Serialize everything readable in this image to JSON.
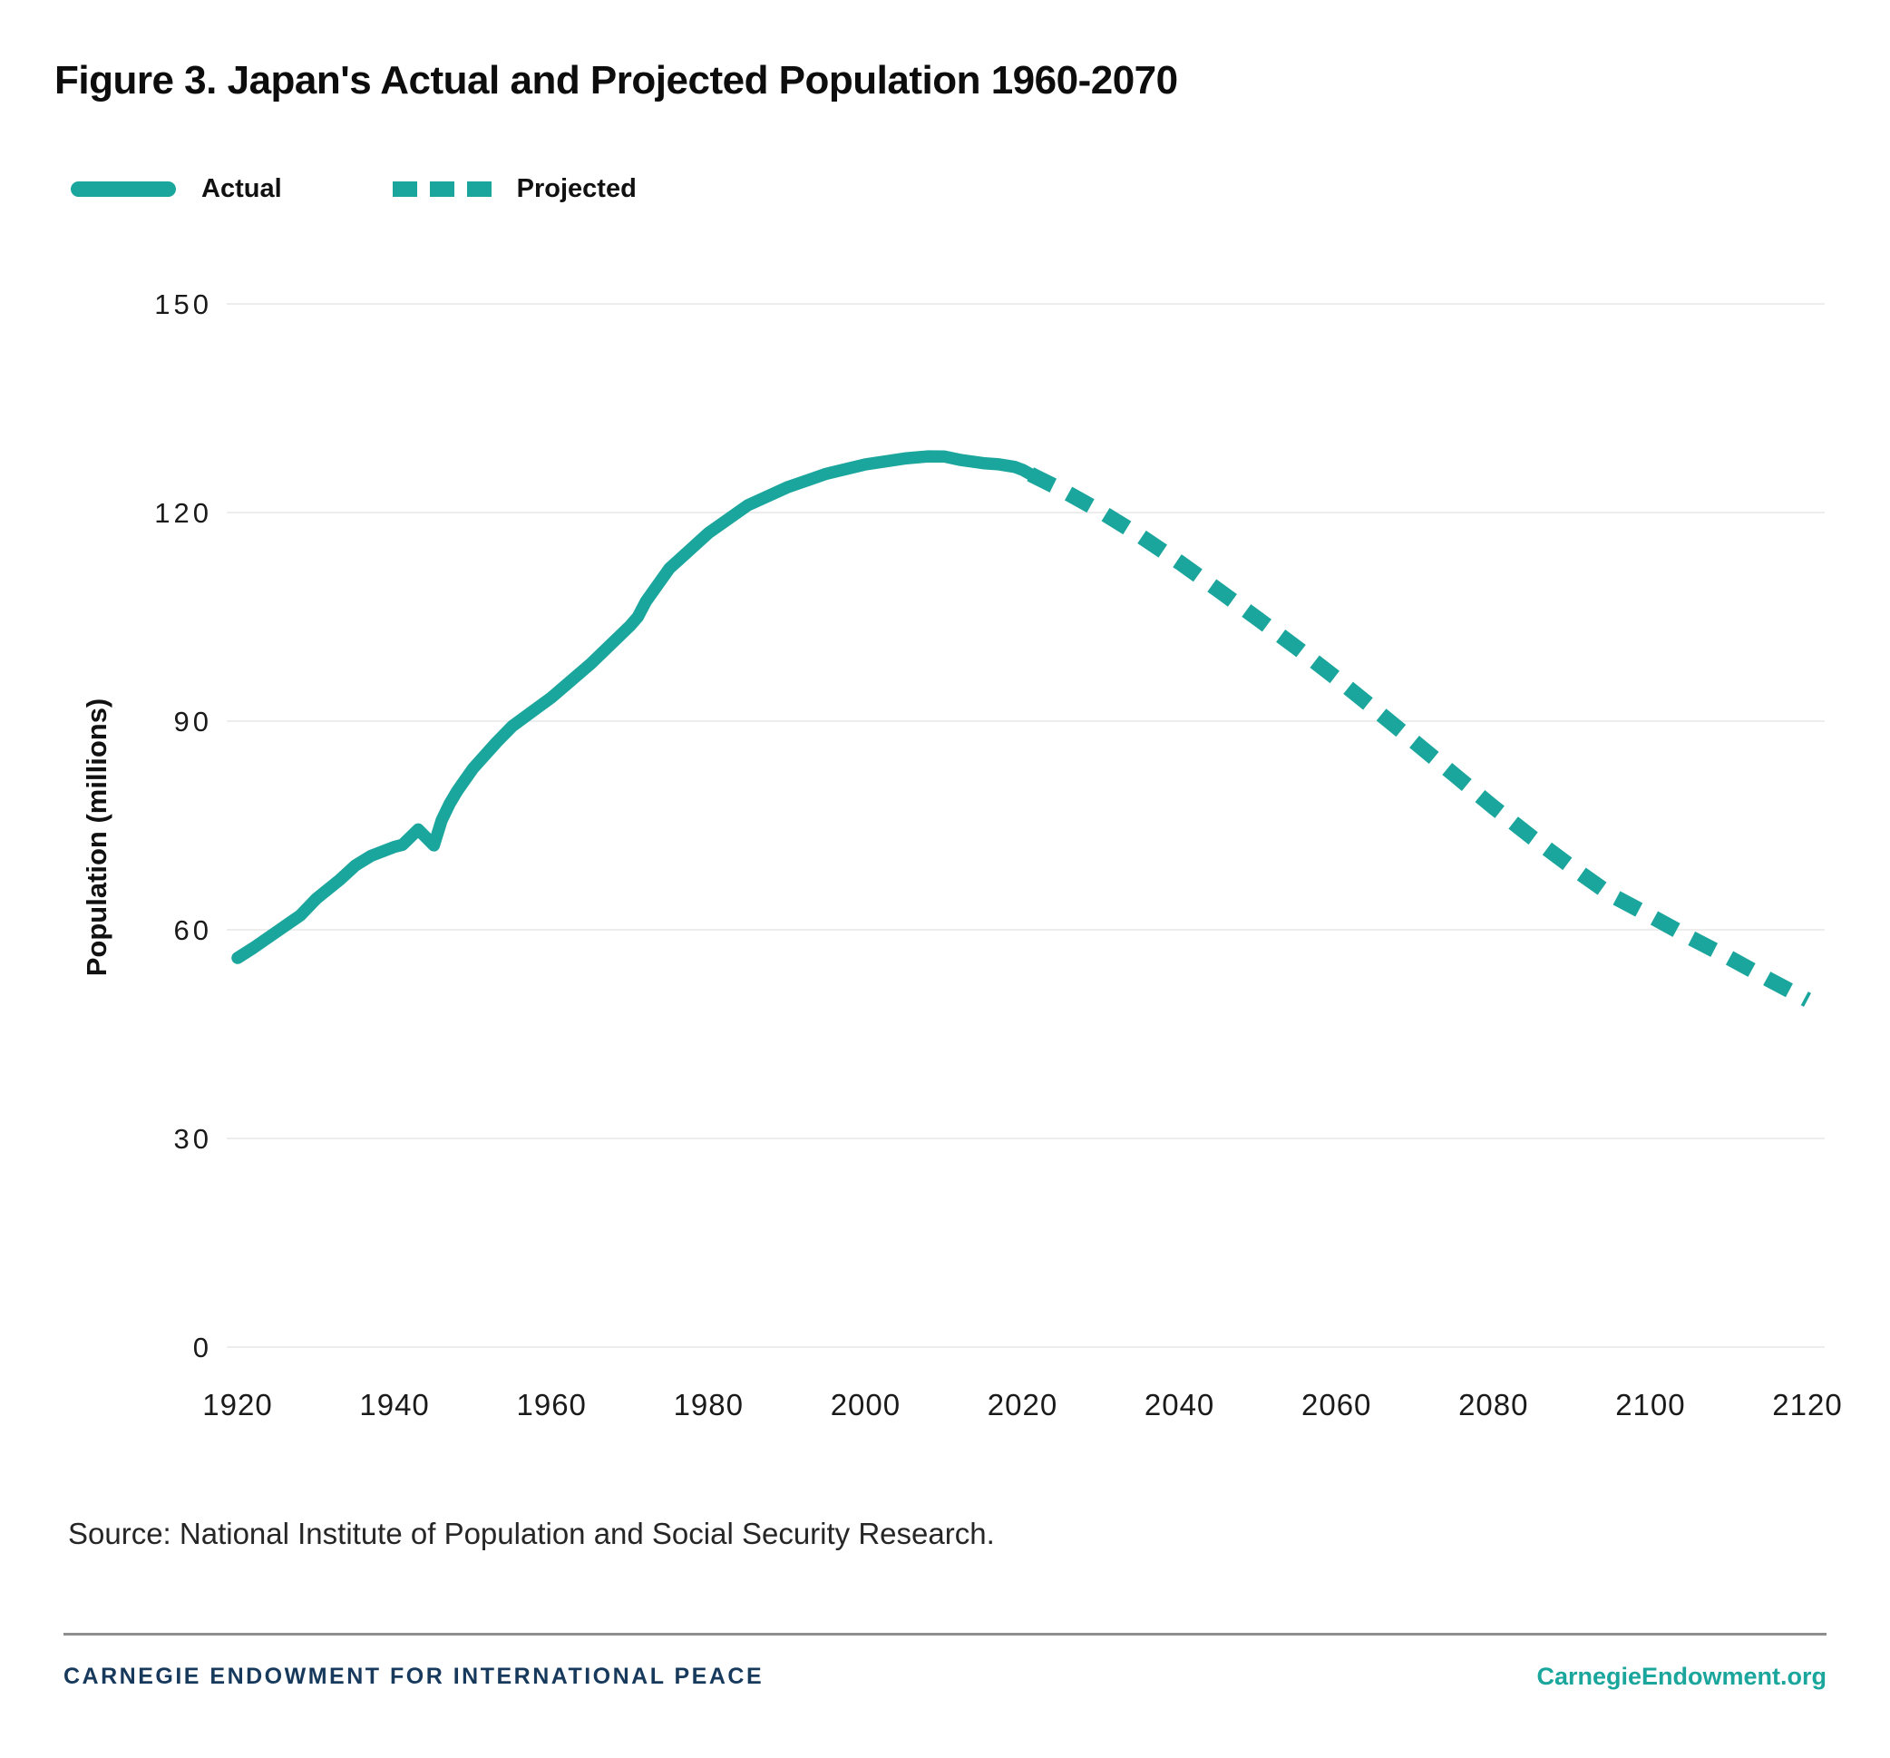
{
  "title": "Figure 3. Japan's Actual and Projected Population 1960-2070",
  "legend": {
    "items": [
      {
        "label": "Actual",
        "style": "solid"
      },
      {
        "label": "Projected",
        "style": "dashed"
      }
    ]
  },
  "colors": {
    "accent": "#1aa69c",
    "navy": "#16395c",
    "grid": "#ededed",
    "divider": "#8d8d8d",
    "tick_text": "#1a1a1a"
  },
  "chart_data": {
    "type": "line",
    "title": "Figure 3. Japan's Actual and Projected Population 1960-2070",
    "xlabel": "",
    "ylabel": "Population (millions)",
    "xlim": [
      1920,
      2120
    ],
    "ylim": [
      0,
      150
    ],
    "xticks": [
      1920,
      1940,
      1960,
      1980,
      2000,
      2020,
      2040,
      2060,
      2080,
      2100,
      2120
    ],
    "yticks": [
      0,
      30,
      60,
      90,
      120,
      150
    ],
    "grid": true,
    "legend_position": "top-left",
    "series": [
      {
        "name": "Actual",
        "style": "solid",
        "points": [
          [
            1920,
            55.96
          ],
          [
            1922,
            57.39
          ],
          [
            1925,
            59.74
          ],
          [
            1928,
            62.07
          ],
          [
            1930,
            64.45
          ],
          [
            1933,
            67.18
          ],
          [
            1935,
            69.25
          ],
          [
            1937,
            70.63
          ],
          [
            1940,
            71.93
          ],
          [
            1941,
            72.22
          ],
          [
            1943,
            74.43
          ],
          [
            1945,
            72.15
          ],
          [
            1946,
            75.75
          ],
          [
            1947,
            78.1
          ],
          [
            1948,
            80.0
          ],
          [
            1950,
            83.2
          ],
          [
            1953,
            86.98
          ],
          [
            1955,
            89.28
          ],
          [
            1958,
            91.77
          ],
          [
            1960,
            93.42
          ],
          [
            1965,
            98.27
          ],
          [
            1970,
            103.72
          ],
          [
            1971,
            105.01
          ],
          [
            1972,
            107.19
          ],
          [
            1975,
            111.94
          ],
          [
            1980,
            117.06
          ],
          [
            1985,
            121.05
          ],
          [
            1990,
            123.61
          ],
          [
            1995,
            125.57
          ],
          [
            2000,
            126.93
          ],
          [
            2005,
            127.77
          ],
          [
            2008,
            128.08
          ],
          [
            2010,
            128.06
          ],
          [
            2012,
            127.58
          ],
          [
            2015,
            127.09
          ],
          [
            2017,
            126.92
          ],
          [
            2019,
            126.56
          ],
          [
            2020,
            126.15
          ],
          [
            2021,
            125.5
          ]
        ]
      },
      {
        "name": "Projected",
        "style": "dashed",
        "points": [
          [
            2021,
            125.5
          ],
          [
            2025,
            123.26
          ],
          [
            2030,
            120.12
          ],
          [
            2035,
            116.64
          ],
          [
            2040,
            112.84
          ],
          [
            2045,
            108.8
          ],
          [
            2050,
            104.69
          ],
          [
            2055,
            100.51
          ],
          [
            2060,
            96.15
          ],
          [
            2065,
            91.59
          ],
          [
            2070,
            86.96
          ],
          [
            2075,
            82.31
          ],
          [
            2080,
            77.64
          ],
          [
            2085,
            73.2
          ],
          [
            2090,
            69.0
          ],
          [
            2095,
            65.0
          ],
          [
            2100,
            62.0
          ],
          [
            2105,
            58.9
          ],
          [
            2110,
            56.0
          ],
          [
            2115,
            52.9
          ],
          [
            2120,
            49.9
          ]
        ]
      }
    ]
  },
  "source_note": "Source: National Institute of Population and Social Security Research.",
  "footer": {
    "left": "CARNEGIE ENDOWMENT FOR INTERNATIONAL PEACE",
    "right": "CarnegieEndowment.org"
  }
}
